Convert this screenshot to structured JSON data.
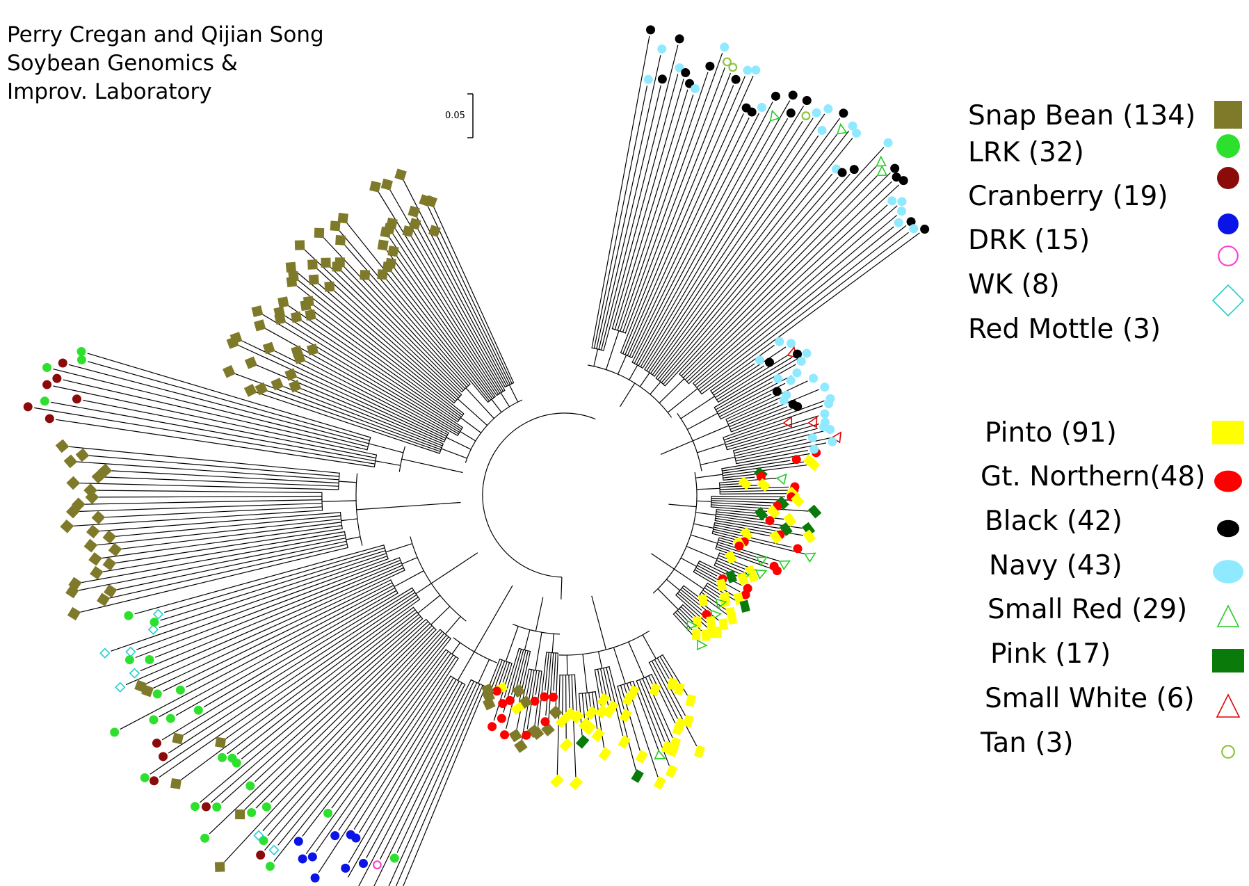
{
  "credit": {
    "line1": "Perry Cregan and Qijian Song",
    "line2": "Soybean Genomics &",
    "line3": "Improv. Laboratory"
  },
  "scale_bar": {
    "label": "0.05"
  },
  "legend": {
    "groups": [
      {
        "label": "Snap Bean (134)",
        "color": "#7f7a2a",
        "marker": "square"
      },
      {
        "label": "LRK (32)",
        "color": "#2ee02e",
        "marker": "circle"
      },
      {
        "label": "Cranberry (19)",
        "color": "#8b0a0a",
        "marker": "circle"
      },
      {
        "label": "DRK (15)",
        "color": "#0a14e6",
        "marker": "circle"
      },
      {
        "label": "WK (8)",
        "color": "#ff3fd0",
        "marker": "ring"
      },
      {
        "label": "Red Mottle (3)",
        "color": "#1ecfcf",
        "marker": "diamond-outline"
      },
      {
        "label": "Pinto (91)",
        "color": "#ffff00",
        "marker": "rect"
      },
      {
        "label": "Gt. Northern(48)",
        "color": "#ff0000",
        "marker": "circle"
      },
      {
        "label": "Black (42)",
        "color": "#000000",
        "marker": "circle"
      },
      {
        "label": "Navy (43)",
        "color": "#8fe9ff",
        "marker": "circle"
      },
      {
        "label": "Small Red (29)",
        "color": "#22cc22",
        "marker": "triangle-outline"
      },
      {
        "label": "Pink (17)",
        "color": "#0a7a0a",
        "marker": "rect"
      },
      {
        "label": "Small White (6)",
        "color": "#e00000",
        "marker": "triangle-outline"
      },
      {
        "label": "Tan (3)",
        "color": "#8cc43c",
        "marker": "ring"
      }
    ]
  }
}
